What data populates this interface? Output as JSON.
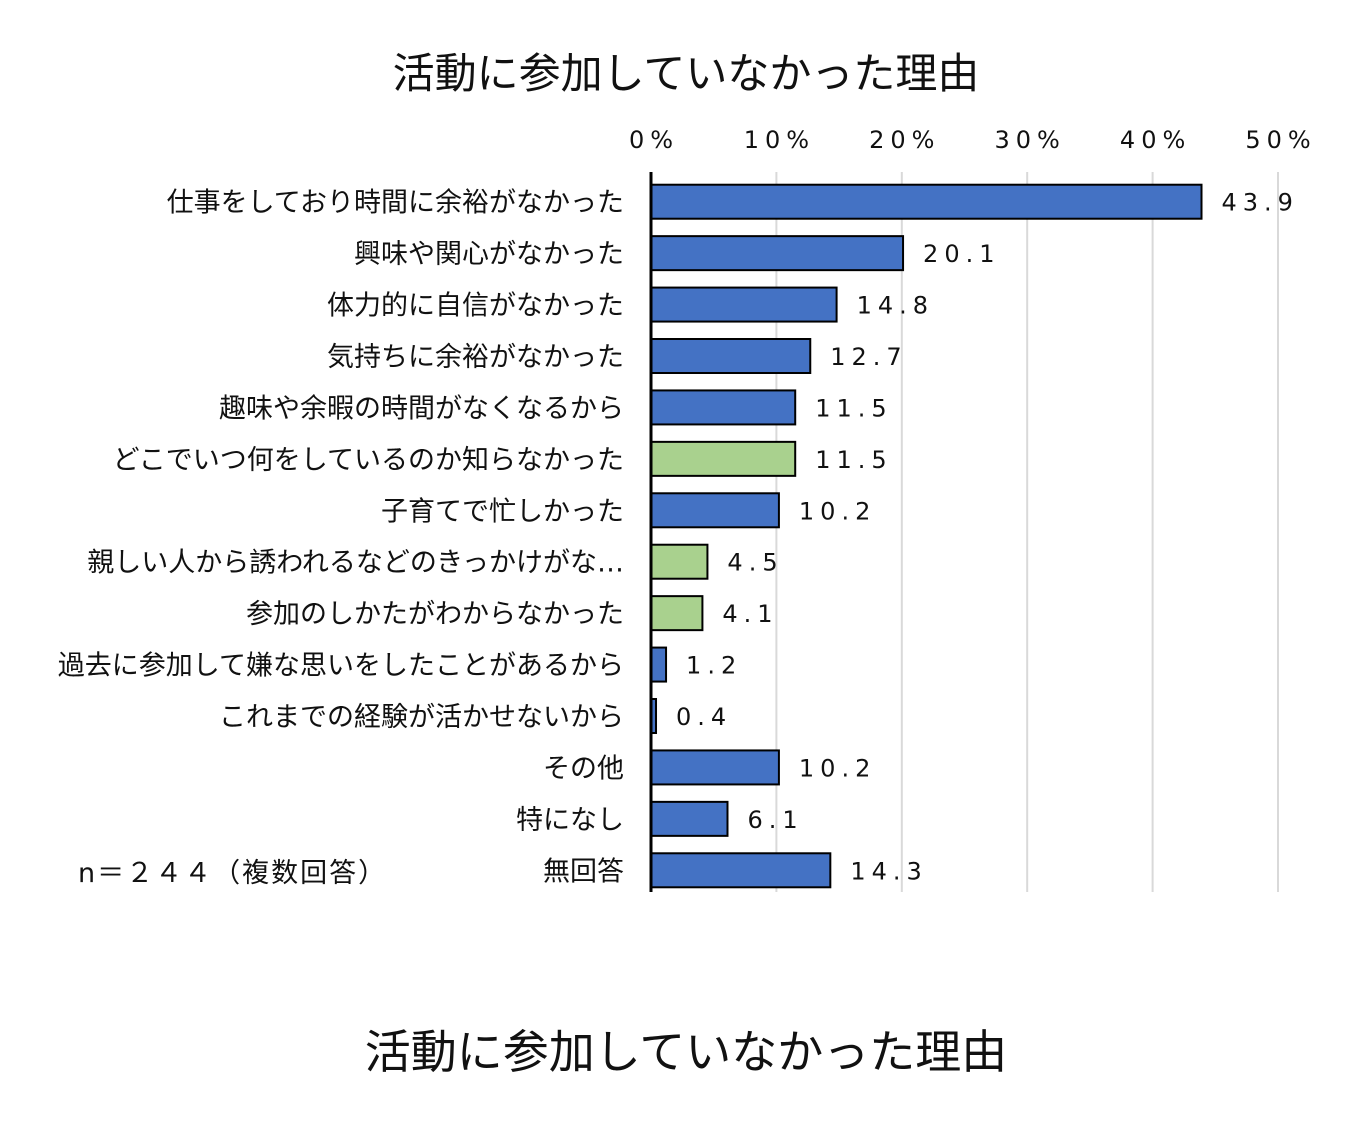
{
  "chart_data": {
    "type": "bar",
    "orientation": "horizontal",
    "title": "活動に参加していなかった理由",
    "xlim": [
      0,
      50
    ],
    "ticks": [
      "0%",
      "10%",
      "20%",
      "30%",
      "40%",
      "50%"
    ],
    "grid": true,
    "categories": [
      "仕事をしており時間に余裕がなかった",
      "興味や関心がなかった",
      "体力的に自信がなかった",
      "気持ちに余裕がなかった",
      "趣味や余暇の時間がなくなるから",
      "どこでいつ何をしているのか知らなかった",
      "子育てで忙しかった",
      "親しい人から誘われるなどのきっかけがな…",
      "参加のしかたがわからなかった",
      "過去に参加して嫌な思いをしたことがあるから",
      "これまでの経験が活かせないから",
      "その他",
      "特になし",
      "無回答"
    ],
    "values": [
      43.9,
      20.1,
      14.8,
      12.7,
      11.5,
      11.5,
      10.2,
      4.5,
      4.1,
      1.2,
      0.4,
      10.2,
      6.1,
      14.3
    ],
    "value_labels": [
      "43.9",
      "20.1",
      "14.8",
      "12.7",
      "11.5",
      "11.5",
      "10.2",
      "4.5",
      "4.1",
      "1.2",
      "0.4",
      "10.2",
      "6.1",
      "14.3"
    ],
    "highlight": [
      false,
      false,
      false,
      false,
      false,
      true,
      false,
      true,
      true,
      false,
      false,
      false,
      false,
      false
    ],
    "colors": {
      "default": "#4472C4",
      "highlight": "#A9D18E",
      "border": "#000000",
      "grid": "#D9D9D9"
    },
    "note": "n＝２４４（複数回答）"
  },
  "caption": "活動に参加していなかった理由"
}
